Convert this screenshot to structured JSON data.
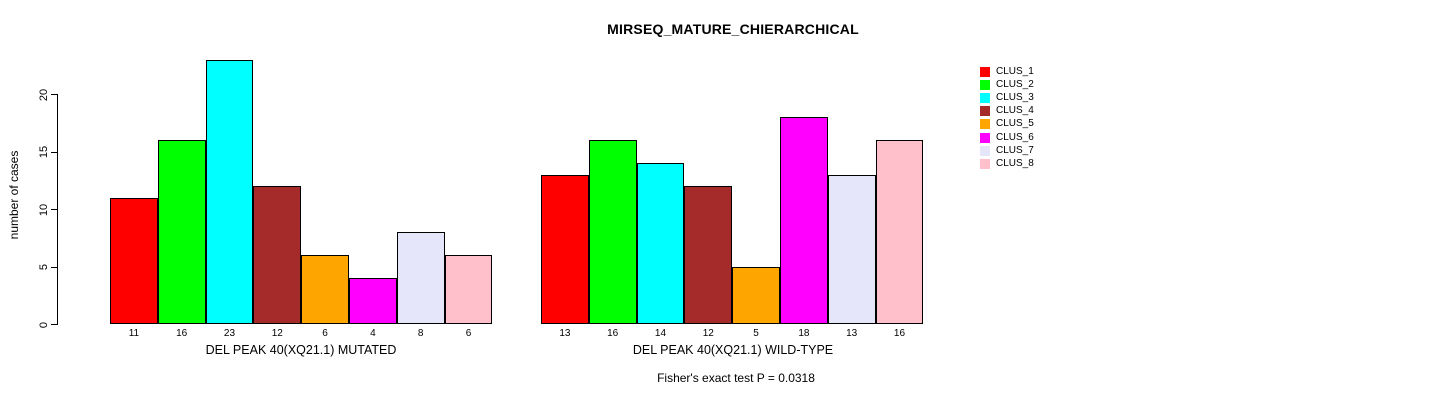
{
  "title": "MIRSEQ_MATURE_CHIERARCHICAL",
  "subtitle": "Fisher's exact test P = 0.0318",
  "ylabel": "number of cases",
  "y_axis": {
    "ticks": [
      0,
      5,
      10,
      15,
      20
    ]
  },
  "legend": {
    "position": "right",
    "entries": [
      {
        "label": "CLUS_1",
        "color": "#FF0000"
      },
      {
        "label": "CLUS_2",
        "color": "#00FF00"
      },
      {
        "label": "CLUS_3",
        "color": "#00FFFF"
      },
      {
        "label": "CLUS_4",
        "color": "#A52A2A"
      },
      {
        "label": "CLUS_5",
        "color": "#FFA500"
      },
      {
        "label": "CLUS_6",
        "color": "#FF00FF"
      },
      {
        "label": "CLUS_7",
        "color": "#E6E6FA"
      },
      {
        "label": "CLUS_8",
        "color": "#FFC0CB"
      }
    ]
  },
  "chart_data": [
    {
      "type": "bar",
      "panel": "left",
      "xlabel": "DEL PEAK 40(XQ21.1) MUTATED",
      "ylabel": "number of cases",
      "categories": [
        "CLUS_1",
        "CLUS_2",
        "CLUS_3",
        "CLUS_4",
        "CLUS_5",
        "CLUS_6",
        "CLUS_7",
        "CLUS_8"
      ],
      "values": [
        11,
        16,
        23,
        12,
        6,
        4,
        8,
        6
      ],
      "bar_labels": [
        "11",
        "16",
        "23",
        "12",
        "6",
        "4",
        "8",
        "6"
      ],
      "colors": [
        "#FF0000",
        "#00FF00",
        "#00FFFF",
        "#A52A2A",
        "#FFA500",
        "#FF00FF",
        "#E6E6FA",
        "#FFC0CB"
      ],
      "ylim": [
        0,
        23
      ],
      "grid": false
    },
    {
      "type": "bar",
      "panel": "right",
      "xlabel": "DEL PEAK 40(XQ21.1) WILD-TYPE",
      "ylabel": "number of cases",
      "categories": [
        "CLUS_1",
        "CLUS_2",
        "CLUS_3",
        "CLUS_4",
        "CLUS_5",
        "CLUS_6",
        "CLUS_7",
        "CLUS_8"
      ],
      "values": [
        13,
        16,
        14,
        12,
        5,
        18,
        13,
        16
      ],
      "bar_labels": [
        "13",
        "16",
        "14",
        "12",
        "5",
        "18",
        "13",
        "16"
      ],
      "colors": [
        "#FF0000",
        "#00FF00",
        "#00FFFF",
        "#A52A2A",
        "#FFA500",
        "#FF00FF",
        "#E6E6FA",
        "#FFC0CB"
      ],
      "ylim": [
        0,
        23
      ],
      "grid": false
    }
  ]
}
